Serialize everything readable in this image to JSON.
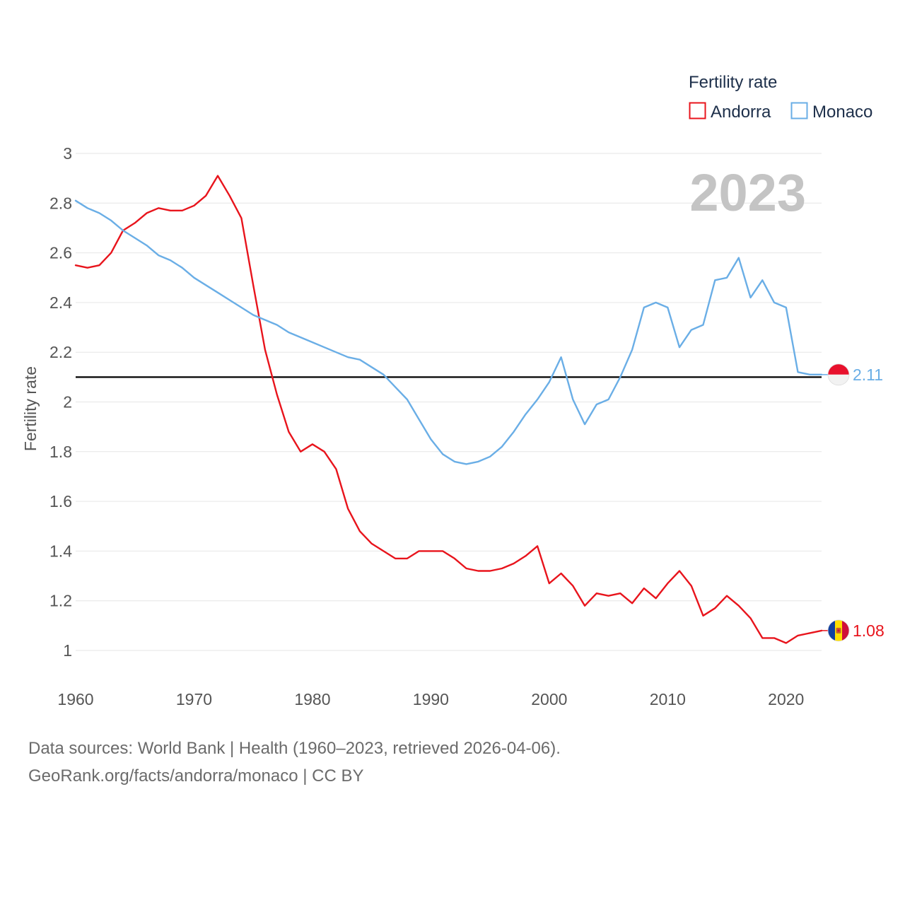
{
  "chart_data": {
    "type": "line",
    "title": "Fertility rate",
    "ylabel": "Fertility rate",
    "xlabel": "",
    "year_label": "2023",
    "xlim": [
      1960,
      2023
    ],
    "ylim": [
      0.9,
      3.0
    ],
    "x_ticks": [
      1960,
      1970,
      1980,
      1990,
      2000,
      2010,
      2020
    ],
    "y_ticks": [
      1,
      1.2,
      1.4,
      1.6,
      1.8,
      2,
      2.2,
      2.4,
      2.6,
      2.8,
      3
    ],
    "reference_line": 2.1,
    "grid": true,
    "legend_position": "top-right",
    "x": [
      1960,
      1961,
      1962,
      1963,
      1964,
      1965,
      1966,
      1967,
      1968,
      1969,
      1970,
      1971,
      1972,
      1973,
      1974,
      1975,
      1976,
      1977,
      1978,
      1979,
      1980,
      1981,
      1982,
      1983,
      1984,
      1985,
      1986,
      1987,
      1988,
      1989,
      1990,
      1991,
      1992,
      1993,
      1994,
      1995,
      1996,
      1997,
      1998,
      1999,
      2000,
      2001,
      2002,
      2003,
      2004,
      2005,
      2006,
      2007,
      2008,
      2009,
      2010,
      2011,
      2012,
      2013,
      2014,
      2015,
      2016,
      2017,
      2018,
      2019,
      2020,
      2021,
      2022,
      2023
    ],
    "series": [
      {
        "name": "Andorra",
        "color": "#e8141c",
        "end_label": "1.08",
        "flag": "andorra",
        "values": [
          2.55,
          2.54,
          2.55,
          2.6,
          2.69,
          2.72,
          2.76,
          2.78,
          2.77,
          2.77,
          2.79,
          2.83,
          2.91,
          2.83,
          2.74,
          2.47,
          2.21,
          2.03,
          1.88,
          1.8,
          1.83,
          1.8,
          1.73,
          1.57,
          1.48,
          1.43,
          1.4,
          1.37,
          1.37,
          1.4,
          1.4,
          1.4,
          1.37,
          1.33,
          1.32,
          1.32,
          1.33,
          1.35,
          1.38,
          1.42,
          1.27,
          1.31,
          1.26,
          1.18,
          1.23,
          1.22,
          1.23,
          1.19,
          1.25,
          1.21,
          1.27,
          1.32,
          1.26,
          1.14,
          1.17,
          1.22,
          1.18,
          1.13,
          1.05,
          1.05,
          1.03,
          1.06,
          1.07,
          1.08
        ]
      },
      {
        "name": "Monaco",
        "color": "#6aaee6",
        "end_label": "2.11",
        "flag": "monaco",
        "values": [
          2.81,
          2.78,
          2.76,
          2.73,
          2.69,
          2.66,
          2.63,
          2.59,
          2.57,
          2.54,
          2.5,
          2.47,
          2.44,
          2.41,
          2.38,
          2.35,
          2.33,
          2.31,
          2.28,
          2.26,
          2.24,
          2.22,
          2.2,
          2.18,
          2.17,
          2.14,
          2.11,
          2.06,
          2.01,
          1.93,
          1.85,
          1.79,
          1.76,
          1.75,
          1.76,
          1.78,
          1.82,
          1.88,
          1.95,
          2.01,
          2.08,
          2.18,
          2.01,
          1.91,
          1.99,
          2.01,
          2.1,
          2.21,
          2.38,
          2.4,
          2.38,
          2.22,
          2.29,
          2.31,
          2.49,
          2.5,
          2.58,
          2.42,
          2.49,
          2.4,
          2.38,
          2.12,
          2.11,
          2.11
        ]
      }
    ]
  },
  "source": {
    "line1": "Data sources: World Bank | Health (1960–2023, retrieved 2026-04-06).",
    "line2": "GeoRank.org/facts/andorra/monaco | CC BY"
  }
}
